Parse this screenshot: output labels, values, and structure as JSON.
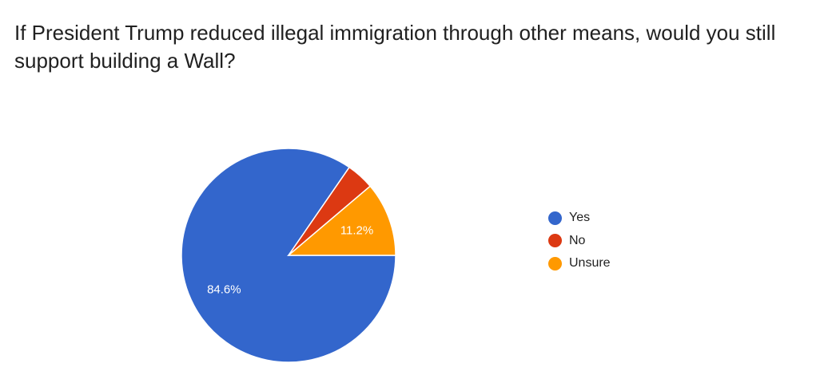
{
  "chart_data": {
    "type": "pie",
    "title": "If President Trump reduced illegal immigration through other means, would you still support building a Wall?",
    "categories": [
      "Yes",
      "No",
      "Unsure"
    ],
    "values": [
      84.6,
      4.2,
      11.2
    ],
    "data_labels": [
      "84.6%",
      "",
      "11.2%"
    ],
    "colors": [
      "#3366cc",
      "#dc3912",
      "#ff9900"
    ],
    "legend_position": "right"
  }
}
